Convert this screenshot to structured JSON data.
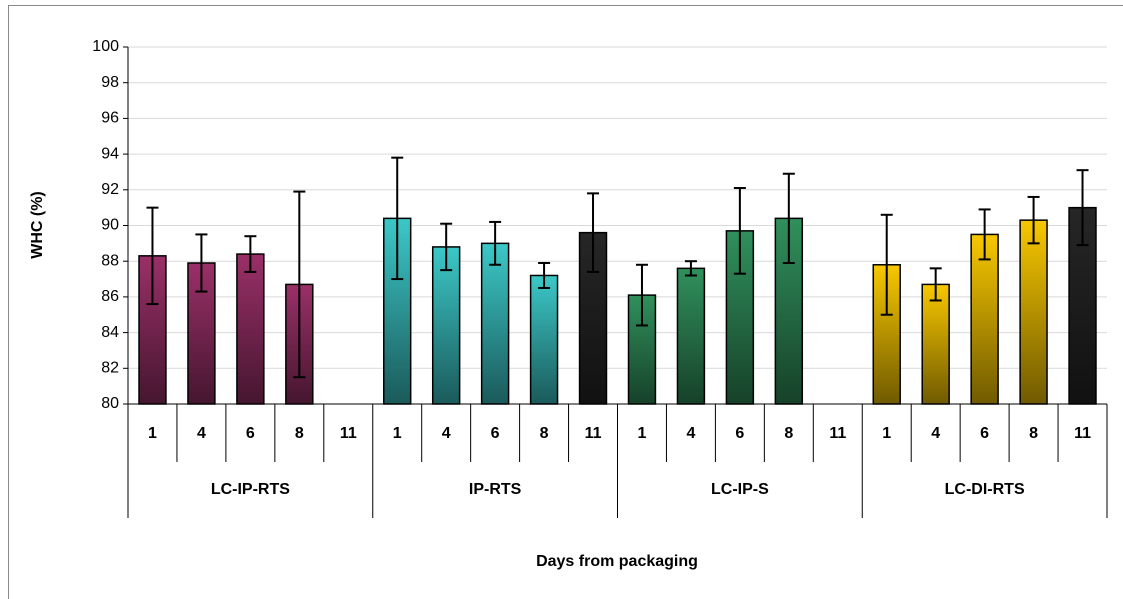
{
  "chart_data": {
    "type": "bar",
    "ylabel": "WHC (%)",
    "xlabel": "Days from packaging",
    "ylim": [
      80,
      100
    ],
    "yticks": [
      80,
      82,
      84,
      86,
      88,
      90,
      92,
      94,
      96,
      98,
      100
    ],
    "grid": true,
    "groups": [
      {
        "name": "LC-IP-RTS",
        "days": [
          1,
          4,
          6,
          8,
          11
        ],
        "values": [
          88.3,
          87.9,
          88.4,
          86.7,
          80
        ],
        "errors": [
          2.7,
          1.6,
          1.0,
          5.2,
          null
        ],
        "colors": [
          "#9a3068",
          "#9a3068",
          "#9a3068",
          "#9a3068",
          "#9a3068"
        ]
      },
      {
        "name": "IP-RTS",
        "days": [
          1,
          4,
          6,
          8,
          11
        ],
        "values": [
          90.4,
          88.8,
          89.0,
          87.2,
          89.6
        ],
        "errors": [
          3.4,
          1.3,
          1.2,
          0.7,
          2.2
        ],
        "colors": [
          "#3cc8c8",
          "#3cc8c8",
          "#3cc8c8",
          "#3cc8c8",
          "#262626"
        ]
      },
      {
        "name": "LC-IP-S",
        "days": [
          1,
          4,
          6,
          8,
          11
        ],
        "values": [
          86.1,
          87.6,
          89.7,
          90.4,
          80
        ],
        "errors": [
          1.7,
          0.4,
          2.4,
          2.5,
          null
        ],
        "colors": [
          "#30905c",
          "#30905c",
          "#30905c",
          "#30905c",
          "#30905c"
        ]
      },
      {
        "name": "LC-DI-RTS",
        "days": [
          1,
          4,
          6,
          8,
          11
        ],
        "values": [
          87.8,
          86.7,
          89.5,
          90.3,
          91.0
        ],
        "errors": [
          2.8,
          0.9,
          1.4,
          1.3,
          2.1
        ],
        "colors": [
          "#f8c800",
          "#f8c800",
          "#f8c800",
          "#f8c800",
          "#262626"
        ]
      }
    ]
  }
}
